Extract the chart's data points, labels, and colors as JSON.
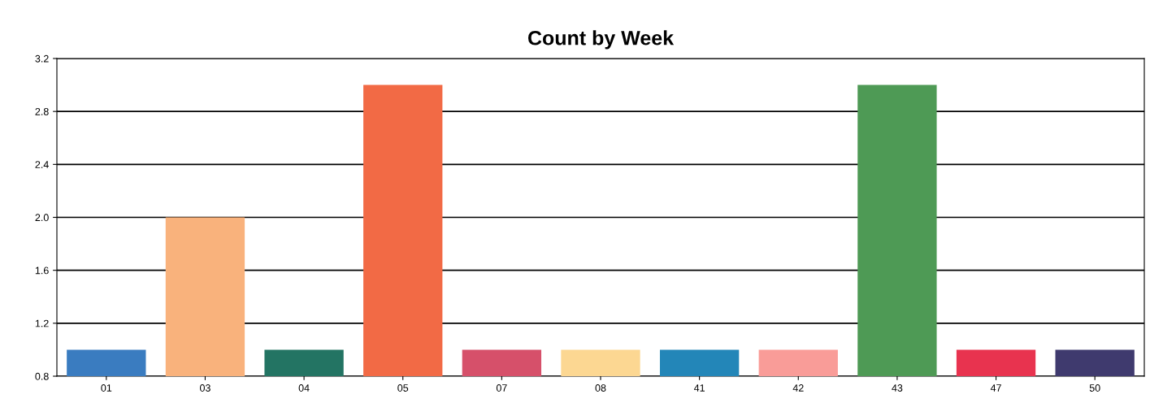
{
  "chart_data": {
    "type": "bar",
    "title": "Count by Week",
    "categories": [
      "01",
      "03",
      "04",
      "05",
      "07",
      "08",
      "41",
      "42",
      "43",
      "47",
      "50"
    ],
    "values": [
      1,
      2,
      1,
      3,
      1,
      1,
      1,
      1,
      3,
      1,
      1
    ],
    "colors": [
      "#3a7cc0",
      "#f9b27c",
      "#237463",
      "#f26a45",
      "#d6506a",
      "#fcd792",
      "#2386b8",
      "#f99c98",
      "#4e9a55",
      "#e8334f",
      "#3f3a6e"
    ],
    "ylim": [
      0.8,
      3.2
    ],
    "yticks": [
      0.8,
      1.2,
      1.6,
      {
        "value": 2.0,
        "label": "2.0"
      },
      2.4,
      2.8,
      3.2
    ],
    "grid": "y"
  }
}
